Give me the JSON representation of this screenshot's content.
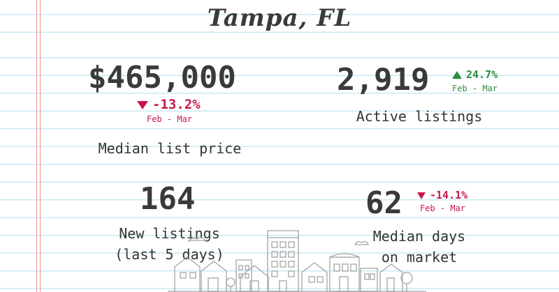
{
  "title": "Tampa, FL",
  "stats": {
    "median_list_price": {
      "value": "$465,000",
      "change": "-13.2%",
      "direction": "down",
      "period": "Feb - Mar",
      "label": "Median list price"
    },
    "active_listings": {
      "value": "2,919",
      "change": "24.7%",
      "direction": "up",
      "period": "Feb - Mar",
      "label": "Active listings"
    },
    "new_listings": {
      "value": "164",
      "label_line1": "New listings",
      "label_line2": "(last 5 days)"
    },
    "median_days": {
      "value": "62",
      "change": "-14.1%",
      "direction": "down",
      "period": "Feb - Mar",
      "label_line1": "Median days",
      "label_line2": "on market"
    }
  },
  "colors": {
    "down": "#c8174c",
    "up": "#2e8b3d",
    "rule_line": "#c9e9f3",
    "margin_line": "#e79a9a",
    "text": "#333333"
  },
  "icons": [
    "triangle-down-icon",
    "triangle-up-icon",
    "city-skyline-illustration"
  ]
}
